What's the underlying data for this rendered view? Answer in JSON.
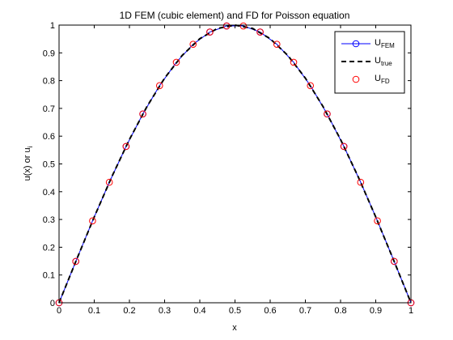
{
  "chart_data": {
    "type": "line",
    "title": "1D FEM (cubic element) and FD for Poisson equation",
    "xlabel": "x",
    "ylabel": {
      "main": "u(x) or u",
      "sub": "i"
    },
    "xlim": [
      0,
      1
    ],
    "ylim": [
      0,
      1
    ],
    "xticks": [
      0,
      0.1,
      0.2,
      0.3,
      0.4,
      0.5,
      0.6,
      0.7,
      0.8,
      0.9,
      1
    ],
    "xtick_labels": [
      "0",
      "0.1",
      "0.2",
      "0.3",
      "0.4",
      "0.5",
      "0.6",
      "0.7",
      "0.8",
      "0.9",
      "1"
    ],
    "yticks": [
      0,
      0.1,
      0.2,
      0.3,
      0.4,
      0.5,
      0.6,
      0.7,
      0.8,
      0.9,
      1
    ],
    "ytick_labels": [
      "0",
      "0.1",
      "0.2",
      "0.3",
      "0.4",
      "0.5",
      "0.6",
      "0.7",
      "0.8",
      "0.9",
      "1"
    ],
    "grid": false,
    "legend_position": "top-right",
    "series": [
      {
        "name": {
          "main": "U",
          "sub": "FEM"
        },
        "style": "solid-line-circle-markers",
        "color": "#0000ff",
        "marker_color": "#0000ff",
        "x": [
          0,
          0.0476,
          0.0952,
          0.1429,
          0.1905,
          0.2381,
          0.2857,
          0.3333,
          0.381,
          0.4286,
          0.4762,
          0.5238,
          0.5714,
          0.619,
          0.6667,
          0.7143,
          0.7619,
          0.8095,
          0.8571,
          0.9048,
          0.9524,
          1
        ],
        "y": [
          0,
          0.149,
          0.295,
          0.434,
          0.563,
          0.68,
          0.782,
          0.866,
          0.931,
          0.975,
          0.997,
          0.997,
          0.975,
          0.931,
          0.866,
          0.782,
          0.68,
          0.563,
          0.434,
          0.295,
          0.149,
          0
        ],
        "marker_x": [
          0,
          0.0476,
          0.1905,
          0.2381,
          0.4286,
          0.4762,
          0.5714,
          0.7619,
          0.8095,
          0.9524,
          1
        ],
        "marker_y": [
          0,
          0.149,
          0.563,
          0.68,
          0.975,
          0.997,
          0.975,
          0.68,
          0.563,
          0.149,
          0
        ]
      },
      {
        "name": {
          "main": "U",
          "sub": "true"
        },
        "style": "dashed-line",
        "color": "#000000",
        "x": [
          0,
          0.05,
          0.1,
          0.15,
          0.2,
          0.25,
          0.3,
          0.35,
          0.4,
          0.45,
          0.5,
          0.55,
          0.6,
          0.65,
          0.7,
          0.75,
          0.8,
          0.85,
          0.9,
          0.95,
          1
        ],
        "y": [
          0,
          0.156,
          0.309,
          0.454,
          0.588,
          0.707,
          0.809,
          0.891,
          0.951,
          0.988,
          1,
          0.988,
          0.951,
          0.891,
          0.809,
          0.707,
          0.588,
          0.454,
          0.309,
          0.156,
          0
        ]
      },
      {
        "name": {
          "main": "U",
          "sub": "FD"
        },
        "style": "circle-markers",
        "color": "#ff0000",
        "x": [
          0,
          0.0476,
          0.0952,
          0.1429,
          0.1905,
          0.2381,
          0.2857,
          0.3333,
          0.381,
          0.4286,
          0.4762,
          0.5238,
          0.5714,
          0.619,
          0.6667,
          0.7143,
          0.7619,
          0.8095,
          0.8571,
          0.9048,
          0.9524,
          1
        ],
        "y": [
          0,
          0.149,
          0.295,
          0.434,
          0.563,
          0.68,
          0.782,
          0.866,
          0.931,
          0.975,
          0.997,
          0.997,
          0.975,
          0.931,
          0.866,
          0.782,
          0.68,
          0.563,
          0.434,
          0.295,
          0.149,
          0
        ]
      }
    ]
  }
}
